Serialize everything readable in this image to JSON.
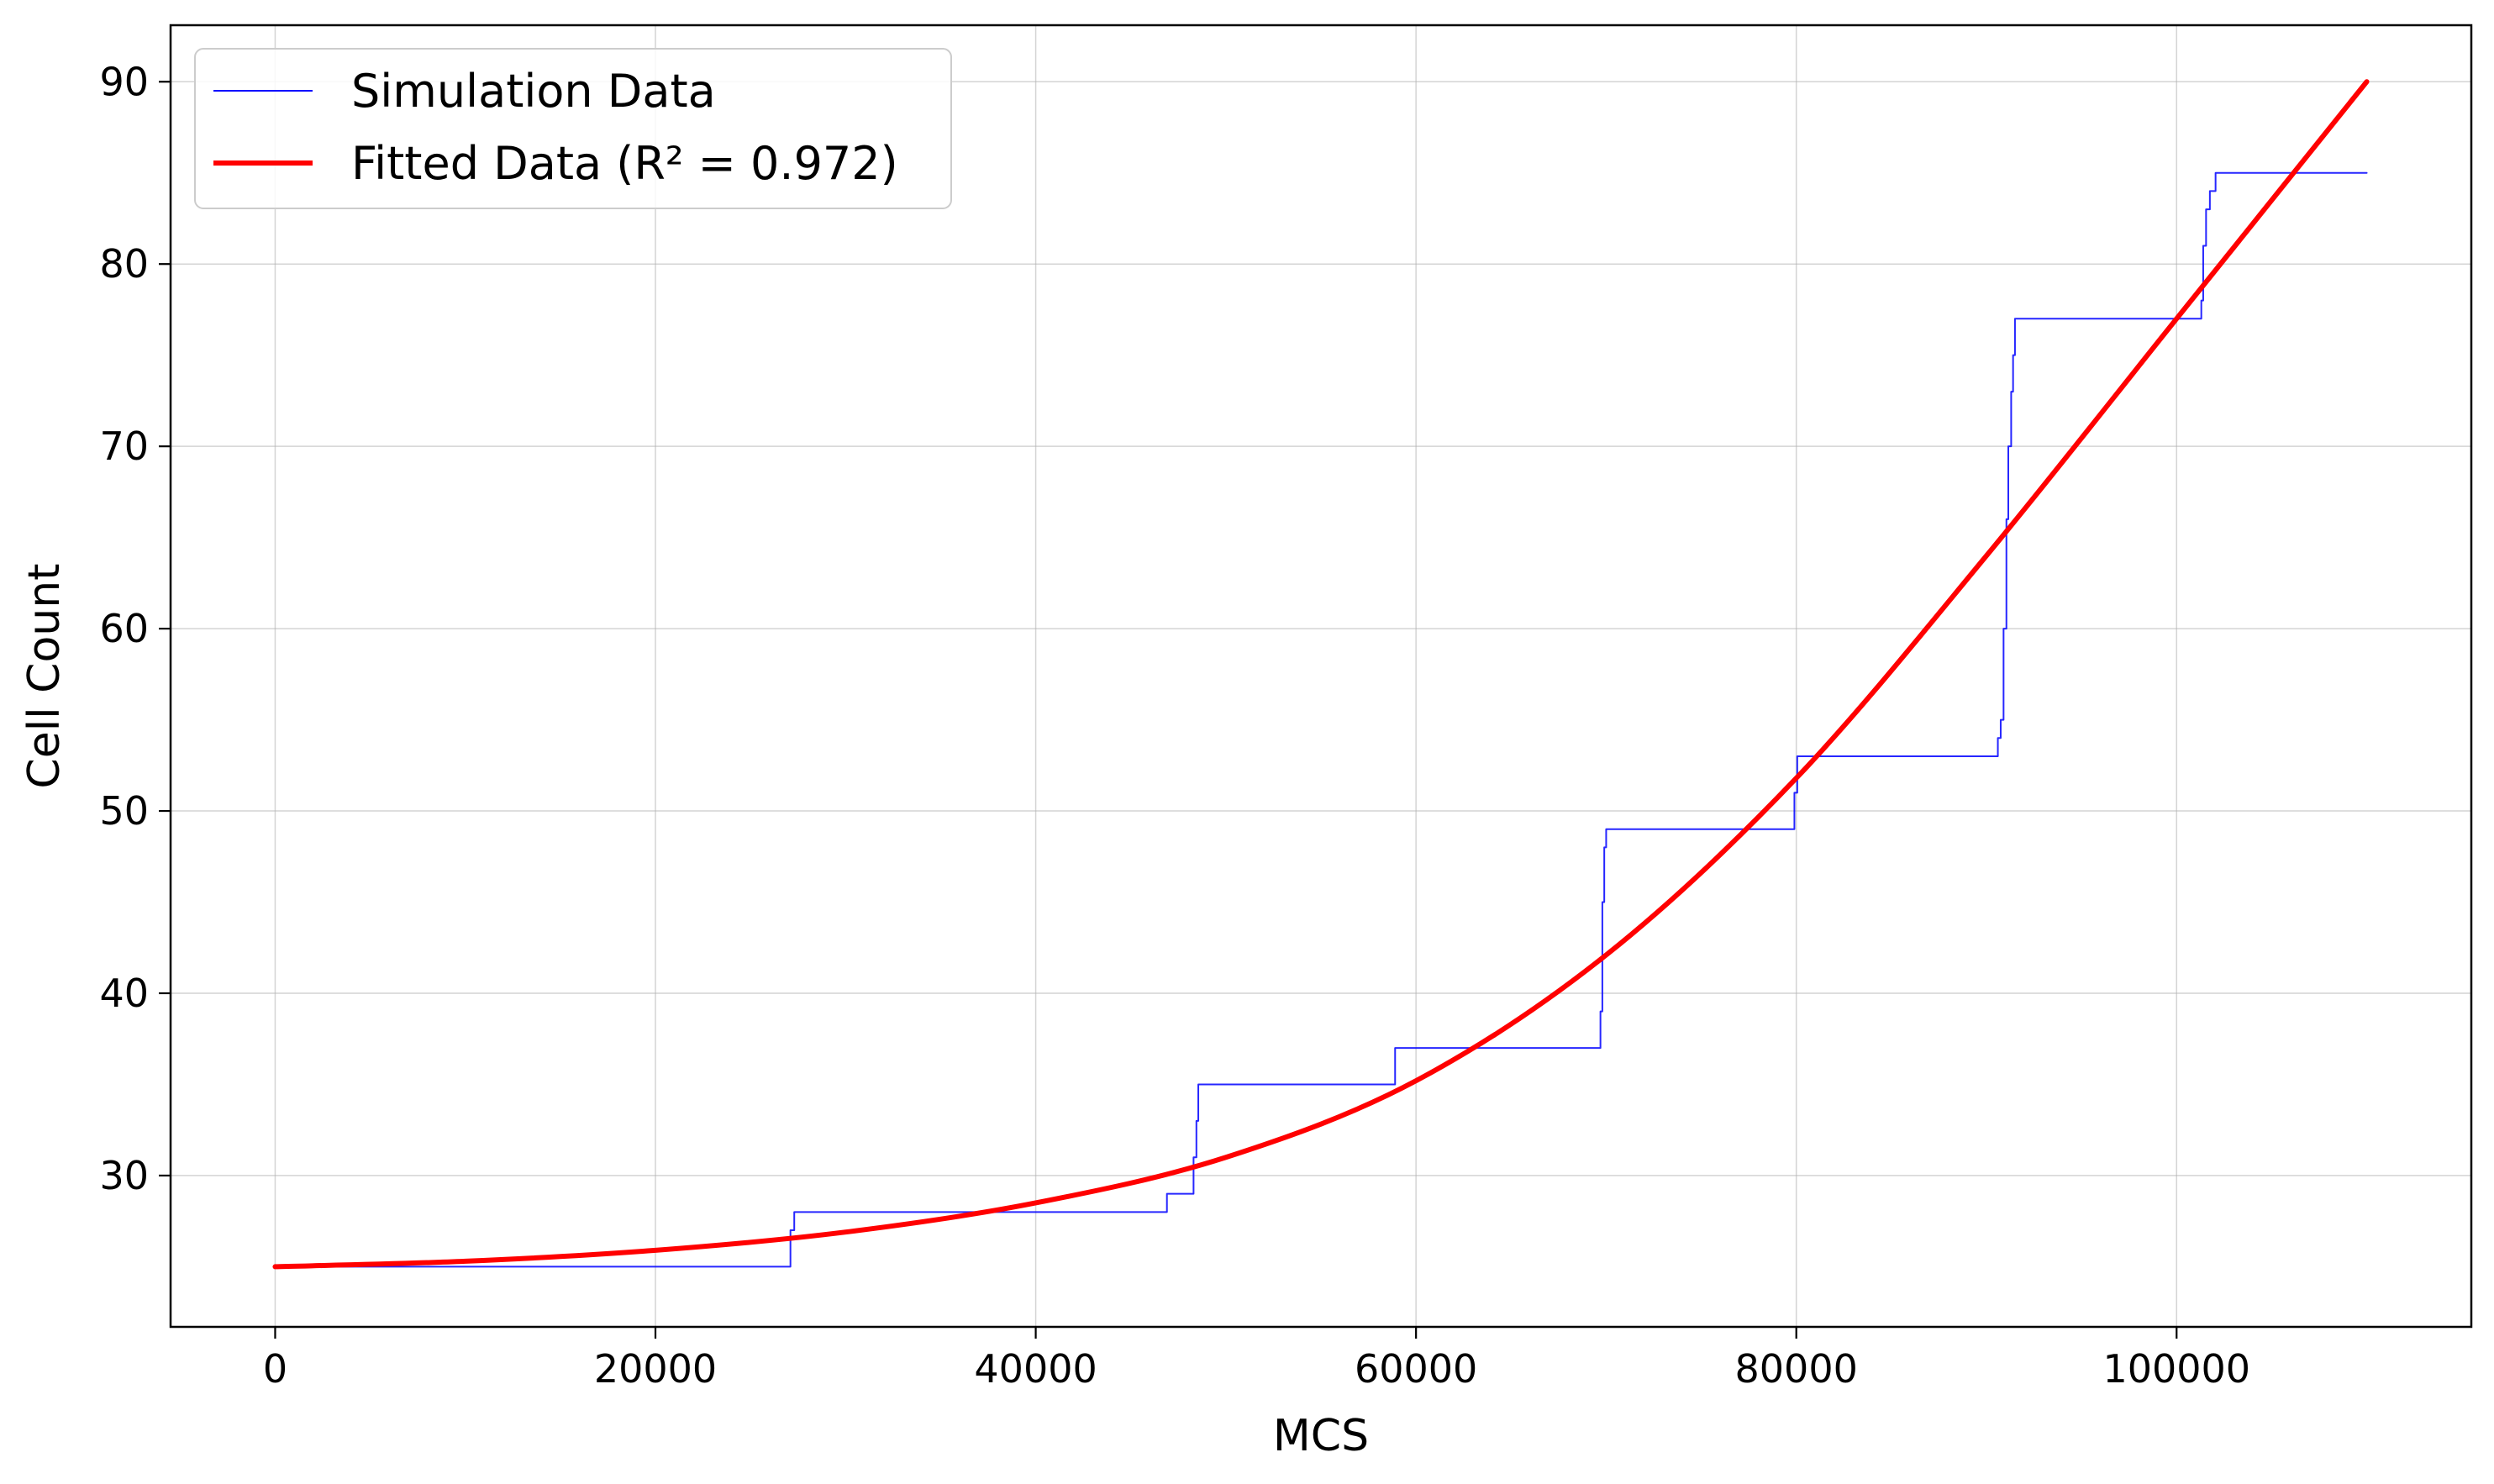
{
  "chart_data": {
    "type": "line",
    "title": "",
    "xlabel": "MCS",
    "ylabel": "Cell Count",
    "xlim": [
      -5500,
      115500
    ],
    "ylim": [
      21.7,
      93.1
    ],
    "x_ticks": [
      0,
      20000,
      40000,
      60000,
      80000,
      100000
    ],
    "x_tick_labels": [
      "0",
      "20000",
      "40000",
      "60000",
      "80000",
      "100000"
    ],
    "y_ticks": [
      30,
      40,
      50,
      60,
      70,
      80,
      90
    ],
    "y_tick_labels": [
      "30",
      "40",
      "50",
      "60",
      "70",
      "80",
      "90"
    ],
    "grid": true,
    "legend_position": "top-left",
    "series": [
      {
        "name": "Simulation Data",
        "color": "#0000ff",
        "style": "step",
        "points": [
          [
            0,
            25
          ],
          [
            27100,
            25
          ],
          [
            27100,
            27
          ],
          [
            27300,
            27
          ],
          [
            27300,
            28
          ],
          [
            46900,
            28
          ],
          [
            46900,
            29
          ],
          [
            48300,
            29
          ],
          [
            48300,
            31
          ],
          [
            48450,
            31
          ],
          [
            48450,
            33
          ],
          [
            48550,
            33
          ],
          [
            48550,
            35
          ],
          [
            58900,
            35
          ],
          [
            58900,
            37
          ],
          [
            69700,
            37
          ],
          [
            69700,
            39
          ],
          [
            69800,
            39
          ],
          [
            69800,
            45
          ],
          [
            69900,
            45
          ],
          [
            69900,
            48
          ],
          [
            70000,
            48
          ],
          [
            70000,
            49
          ],
          [
            79900,
            49
          ],
          [
            79900,
            51
          ],
          [
            80050,
            51
          ],
          [
            80050,
            53
          ],
          [
            90600,
            53
          ],
          [
            90600,
            54
          ],
          [
            90750,
            54
          ],
          [
            90750,
            55
          ],
          [
            90900,
            55
          ],
          [
            90900,
            60
          ],
          [
            91050,
            60
          ],
          [
            91050,
            66
          ],
          [
            91150,
            66
          ],
          [
            91150,
            70
          ],
          [
            91300,
            70
          ],
          [
            91300,
            73
          ],
          [
            91400,
            73
          ],
          [
            91400,
            75
          ],
          [
            91500,
            75
          ],
          [
            91500,
            77
          ],
          [
            101300,
            77
          ],
          [
            101300,
            78
          ],
          [
            101400,
            78
          ],
          [
            101400,
            81
          ],
          [
            101550,
            81
          ],
          [
            101550,
            83
          ],
          [
            101750,
            83
          ],
          [
            101750,
            84
          ],
          [
            102050,
            84
          ],
          [
            102050,
            85
          ],
          [
            110000,
            85
          ]
        ]
      },
      {
        "name": "Fitted Data (R² = 0.972)",
        "color": "#ff0000",
        "style": "line",
        "points": [
          [
            0,
            25.0
          ],
          [
            10000,
            25.3
          ],
          [
            20000,
            25.9
          ],
          [
            30000,
            26.9
          ],
          [
            40000,
            28.5
          ],
          [
            50000,
            31.0
          ],
          [
            60000,
            35.2
          ],
          [
            70000,
            42.1
          ],
          [
            80000,
            51.8
          ],
          [
            90000,
            64.0
          ],
          [
            100000,
            77.0
          ],
          [
            110000,
            90.0
          ]
        ]
      }
    ]
  }
}
